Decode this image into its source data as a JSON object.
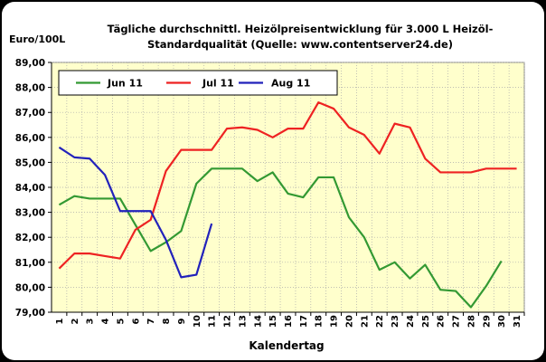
{
  "chart_data": {
    "type": "line",
    "title_line1": "Tägliche durchschnittl. Heizölpreisentwicklung für 3.000 L Heizöl-",
    "title_line2": "Standardqualität (Quelle: www.contentserver24.de)",
    "ylabel": "Euro/100L",
    "xlabel": "Kalendertag",
    "ylim": [
      79,
      89
    ],
    "yticks": [
      "79,00",
      "80,00",
      "81,00",
      "82,00",
      "83,00",
      "84,00",
      "85,00",
      "86,00",
      "87,00",
      "88,00",
      "89,00"
    ],
    "x": [
      1,
      2,
      3,
      4,
      5,
      6,
      7,
      8,
      9,
      10,
      11,
      12,
      13,
      14,
      15,
      16,
      17,
      18,
      19,
      20,
      21,
      22,
      23,
      24,
      25,
      26,
      27,
      28,
      29,
      30,
      31
    ],
    "grid": true,
    "legend_position": "top",
    "plot_bg": "#ffffcc",
    "series": [
      {
        "name": "Jun 11",
        "color": "#339933",
        "values": [
          83.3,
          83.65,
          83.55,
          83.55,
          83.55,
          82.5,
          81.45,
          81.8,
          82.25,
          84.15,
          84.75,
          84.75,
          84.75,
          84.25,
          84.6,
          83.75,
          83.6,
          84.4,
          84.4,
          82.8,
          82.0,
          80.7,
          81.0,
          80.35,
          80.9,
          79.9,
          79.85,
          79.2,
          80.05,
          81.05,
          null
        ]
      },
      {
        "name": "Jul 11",
        "color": "#ee2222",
        "values": [
          80.75,
          81.35,
          81.35,
          81.25,
          81.15,
          82.3,
          82.7,
          84.65,
          85.5,
          85.5,
          85.5,
          86.35,
          86.4,
          86.3,
          86.0,
          86.35,
          86.35,
          87.4,
          87.15,
          86.4,
          86.1,
          85.35,
          86.55,
          86.4,
          85.15,
          84.6,
          84.6,
          84.6,
          84.75,
          84.75,
          84.75
        ]
      },
      {
        "name": "Aug 11",
        "color": "#2222bb",
        "values": [
          85.6,
          85.2,
          85.15,
          84.5,
          83.05,
          83.05,
          83.05,
          81.9,
          80.4,
          80.5,
          82.55,
          null,
          null,
          null,
          null,
          null,
          null,
          null,
          null,
          null,
          null,
          null,
          null,
          null,
          null,
          null,
          null,
          null,
          null,
          null,
          null
        ]
      }
    ]
  }
}
